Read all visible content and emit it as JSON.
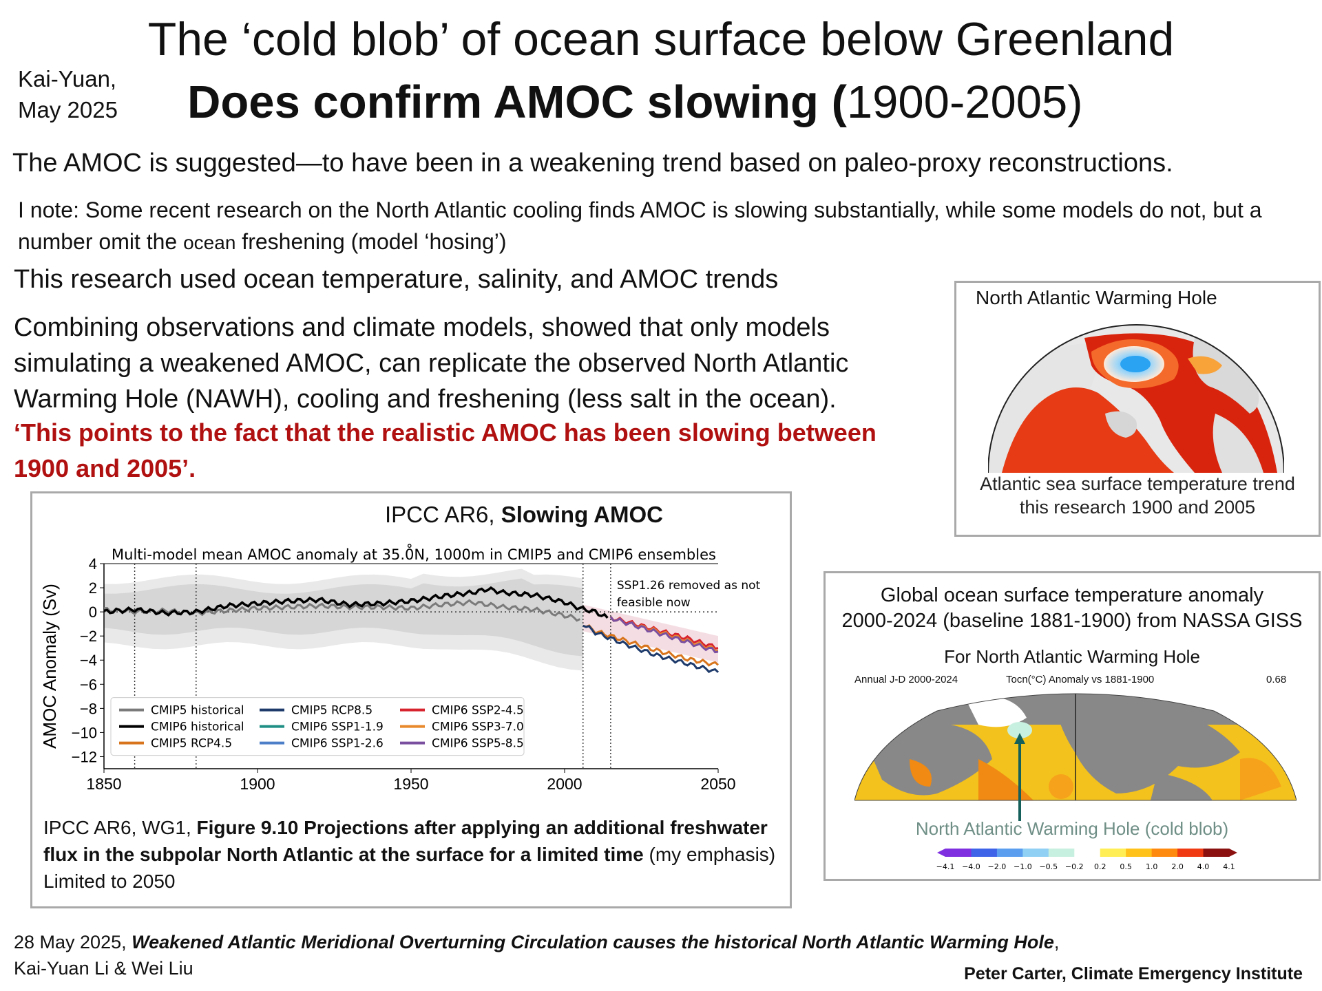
{
  "title_line1": "The ‘cold blob’ of ocean surface below Greenland",
  "title_line2_bold": "Does confirm AMOC slowing (",
  "title_line2_years": "1900-2005)",
  "author_line1": "Kai-Yuan,",
  "author_line2": "May 2025",
  "line1": "The AMOC is suggested—to have been in a weakening trend based on paleo-proxy reconstructions.",
  "note_part1": "I note: Some recent research on the North Atlantic cooling finds AMOC is slowing substantially, while some models do not, but a number omit the ",
  "note_small": "ocean",
  "note_part2": " freshening (model ‘hosing’)",
  "line3": "This research used ocean temperature, salinity, and AMOC trends",
  "para": "Combining observations and climate models, showed  that only models simulating a weakened AMOC, can replicate the observed North Atlantic Warming Hole (NAWH), cooling and freshening (less salt in the ocean).",
  "quote": "‘This points to the fact that the realistic AMOC has been slowing between 1900 and 2005’.",
  "nawh": {
    "title": "North Atlantic Warming Hole",
    "caption_line1": "Atlantic sea surface temperature trend",
    "caption_line2": "this research 1900 and 2005"
  },
  "ipcc": {
    "title_prefix": "IPCC AR6, ",
    "title_bold": "Slowing AMOC",
    "caption_prefix": "IPCC AR6, WG1, ",
    "caption_bold": "Figure 9.10 Projections after applying an additional freshwater flux in the subpolar North Atlantic at the surface for a limited time",
    "caption_rest": " (my emphasis)",
    "caption_line3": "Limited to 2050"
  },
  "giss": {
    "title_line1": "Global ocean surface temperature anomaly",
    "title_line2": "2000-2024 (baseline 1881-1900) from NASSA GISS",
    "subtitle": "For North Atlantic Warming Hole",
    "meta_left": "Annual J-D 2000-2024",
    "meta_mid": "Tocn(°C) Anomaly vs 1881-1900",
    "meta_right": "0.68",
    "arrow_label": "North Atlantic Warming Hole (cold blob)",
    "colorbar_ticks": [
      "−4.1",
      "−4.0",
      "−2.0",
      "−1.0",
      "−0.5",
      "−0.2",
      "0.2",
      "0.5",
      "1.0",
      "2.0",
      "4.0",
      "4.1"
    ],
    "colorbar_colors": [
      "#7f2fe0",
      "#3f63e8",
      "#5b9ef0",
      "#8fd0f4",
      "#c8f0e0",
      "#ffffff",
      "#ffee55",
      "#ffc21a",
      "#ff8a10",
      "#f03a12",
      "#8b1010"
    ]
  },
  "footer": {
    "date": "28 May 2025, ",
    "paper_title": "Weakened Atlantic Meridional Overturning Circulation causes the historical North Atlantic Warming Hole",
    "comma": ",",
    "authors": "Kai-Yuan Li & Wei Liu",
    "credit": "Peter Carter,  Climate  Emergency Institute"
  },
  "chart_data": {
    "type": "line",
    "title": "Multi-model mean AMOC anomaly at 35.0̊N, 1000m in CMIP5 and CMIP6 ensembles",
    "ylabel": "AMOC Anomaly (Sv)",
    "xlabel": "",
    "xlim": [
      1850,
      2050
    ],
    "ylim": [
      -13,
      4
    ],
    "xticks": [
      1850,
      1900,
      1950,
      2000,
      2050
    ],
    "yticks": [
      4,
      2,
      0,
      -2,
      -4,
      -6,
      -8,
      -10,
      -12
    ],
    "ytick_labels": [
      "4",
      "2",
      "0",
      "−2",
      "−4",
      "−6",
      "−8",
      "−10",
      "−12"
    ],
    "vlines": [
      1860,
      1880,
      2006,
      2015
    ],
    "annotation": "SSP1.26 removed as not feasible now",
    "legend_placement": "lower-left",
    "series": [
      {
        "name": "CMIP5 historical",
        "color": "#7a7a7a",
        "x": [
          1850,
          1860,
          1870,
          1880,
          1890,
          1900,
          1910,
          1920,
          1930,
          1940,
          1950,
          1960,
          1970,
          1980,
          1990,
          2000,
          2005
        ],
        "y": [
          0.2,
          0,
          0.1,
          -0.1,
          0.1,
          0.3,
          0.4,
          0.5,
          0.4,
          0.4,
          0.3,
          0.6,
          0.8,
          0.4,
          0.2,
          -0.3,
          -0.6
        ]
      },
      {
        "name": "CMIP6 historical",
        "color": "#000000",
        "x": [
          1850,
          1860,
          1870,
          1880,
          1890,
          1900,
          1910,
          1920,
          1930,
          1940,
          1950,
          1960,
          1970,
          1975,
          1980,
          1990,
          2000,
          2005,
          2010,
          2014
        ],
        "y": [
          0,
          0.2,
          -0.1,
          0,
          0.5,
          0.7,
          0.9,
          1.0,
          0.6,
          0.7,
          0.9,
          1.3,
          1.6,
          1.9,
          1.6,
          1.4,
          0.8,
          0.3,
          0.0,
          -0.5
        ]
      },
      {
        "name": "CMIP5 RCP4.5",
        "color": "#d8741c",
        "x": [
          2006,
          2010,
          2020,
          2030,
          2040,
          2050
        ],
        "y": [
          -1,
          -1.6,
          -2.4,
          -3.2,
          -3.9,
          -4.4
        ]
      },
      {
        "name": "CMIP5 RCP8.5",
        "color": "#1d3a6b",
        "x": [
          2006,
          2010,
          2020,
          2030,
          2040,
          2050
        ],
        "y": [
          -1,
          -1.7,
          -2.7,
          -3.6,
          -4.3,
          -5.0
        ]
      },
      {
        "name": "CMIP6 SSP1-1.9",
        "color": "#1f8f85",
        "x": [],
        "y": []
      },
      {
        "name": "CMIP6 SSP1-2.6",
        "color": "#4d7fc9",
        "x": [],
        "y": []
      },
      {
        "name": "CMIP6 SSP2-4.5",
        "color": "#d6232e",
        "x": [
          2015,
          2020,
          2030,
          2040,
          2050
        ],
        "y": [
          -0.5,
          -0.8,
          -1.5,
          -2.2,
          -3.0
        ]
      },
      {
        "name": "CMIP6 SSP3-7.0",
        "color": "#e8892c",
        "x": [
          2015,
          2020,
          2030,
          2040,
          2050
        ],
        "y": [
          -0.5,
          -0.9,
          -1.6,
          -2.4,
          -3.2
        ]
      },
      {
        "name": "CMIP6 SSP5-8.5",
        "color": "#7b4fa0",
        "x": [
          2015,
          2020,
          2030,
          2040,
          2050
        ],
        "y": [
          -0.5,
          -0.9,
          -1.7,
          -2.5,
          -3.3
        ]
      }
    ]
  }
}
